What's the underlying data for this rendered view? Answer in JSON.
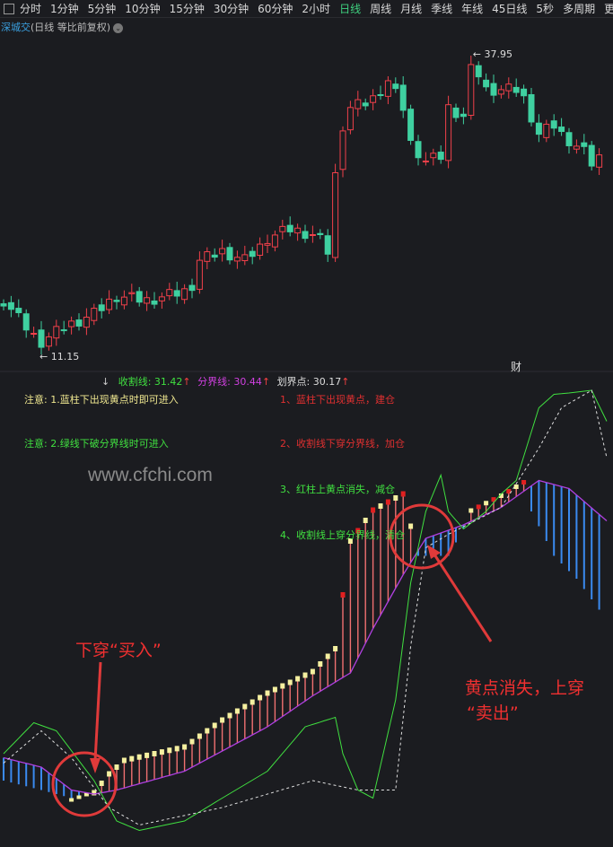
{
  "toolbar": {
    "periods": [
      "分时",
      "1分钟",
      "5分钟",
      "10分钟",
      "15分钟",
      "30分钟",
      "60分钟",
      "2小时",
      "日线",
      "周线",
      "月线",
      "季线",
      "年线",
      "45日线",
      "5秒",
      "多周期",
      "更多"
    ],
    "active": "日线"
  },
  "subtitle": {
    "code": "深城交",
    "mode": "(日线 等比前复权)"
  },
  "price_panel": {
    "high_label": "37.95",
    "low_label": "11.15",
    "marker": "财"
  },
  "indicator_header": {
    "arrow_down": "↓",
    "line1": "收割线: 31.42",
    "line2": "分界线: 30.44",
    "line3": "划界点: 30.17",
    "arrow_up": "↑"
  },
  "notes": {
    "left": [
      "注意: 1.蓝柱下出现黄点时即可进入",
      "注意: 2.绿线下破分界线时可进入"
    ],
    "right": [
      "1、蓝柱下出现黄点，建仓",
      "2、收割线下穿分界线，加仓",
      "3、红柱上黄点消失，减仓",
      "4、收割线上穿分界线，清仓"
    ]
  },
  "watermark": "www.cfchi.com",
  "annotations": {
    "buy": "下穿“买入”",
    "sell1": "黄点消失，上穿",
    "sell2": "“卖出”"
  },
  "colors": {
    "up": "#f0404a",
    "down": "#3fd0a0",
    "fenjie": "#b040e0",
    "green": "#40e040",
    "blue": "#3a8af0",
    "yellow": "#f5f0a0",
    "annot": "#f03030"
  },
  "chart_data": [
    {
      "type": "candlestick",
      "ylim": [
        11.15,
        37.95
      ],
      "close_keyframes": [
        [
          0,
          16.0
        ],
        [
          4,
          12.8
        ],
        [
          5,
          12.3
        ],
        [
          8,
          13.6
        ],
        [
          12,
          14.8
        ],
        [
          15,
          16.4
        ],
        [
          19,
          16.0
        ],
        [
          24,
          16.8
        ],
        [
          25,
          17.4
        ],
        [
          26,
          19.6
        ],
        [
          29,
          20.4
        ],
        [
          32,
          19.6
        ],
        [
          34,
          20.8
        ],
        [
          35,
          21.6
        ],
        [
          38,
          22.4
        ],
        [
          41,
          21.9
        ],
        [
          42,
          21.4
        ],
        [
          43,
          20.4
        ],
        [
          44,
          27.2
        ],
        [
          45,
          31.7
        ],
        [
          46,
          33.3
        ],
        [
          48,
          33.7
        ],
        [
          49,
          34.1
        ],
        [
          51,
          35.7
        ],
        [
          53,
          33.3
        ],
        [
          54,
          30.1
        ],
        [
          56,
          28.5
        ],
        [
          58,
          28.9
        ],
        [
          59,
          33.3
        ],
        [
          61,
          32.5
        ],
        [
          62,
          37.7
        ],
        [
          64,
          34.9
        ],
        [
          66,
          34.9
        ],
        [
          68,
          34.9
        ],
        [
          69,
          34.1
        ],
        [
          71,
          30.9
        ],
        [
          73,
          31.7
        ],
        [
          74,
          30.9
        ],
        [
          77,
          29.3
        ],
        [
          78,
          28.3
        ],
        [
          80,
          29.3
        ]
      ],
      "max": {
        "index": 62,
        "value": 37.95
      },
      "min": {
        "index": 5,
        "value": 11.15
      }
    },
    {
      "type": "indicator",
      "series": [
        {
          "name": "分界线",
          "keyframes": [
            [
              0,
              13.7
            ],
            [
              5,
              13.0
            ],
            [
              9,
              11.3
            ],
            [
              12,
              11.0
            ],
            [
              15,
              11.3
            ],
            [
              24,
              12.7
            ],
            [
              35,
              16.0
            ],
            [
              41,
              18.3
            ],
            [
              46,
              20.0
            ],
            [
              49,
              23.3
            ],
            [
              53,
              27.3
            ],
            [
              56,
              30.0
            ],
            [
              61,
              31.0
            ],
            [
              66,
              32.3
            ],
            [
              71,
              34.3
            ],
            [
              75,
              33.7
            ],
            [
              80,
              31.3
            ]
          ]
        },
        {
          "name": "bar_end",
          "keyframes": [
            [
              0,
              12.0
            ],
            [
              5,
              11.3
            ],
            [
              9,
              10.7
            ],
            [
              12,
              11.3
            ],
            [
              14,
              12.7
            ],
            [
              16,
              13.7
            ],
            [
              24,
              14.7
            ],
            [
              29,
              16.7
            ],
            [
              35,
              18.7
            ],
            [
              41,
              20.3
            ],
            [
              44,
              22.0
            ],
            [
              45,
              26.0
            ],
            [
              46,
              30.0
            ],
            [
              49,
              32.3
            ],
            [
              53,
              33.5
            ],
            [
              55,
              28.7
            ],
            [
              59,
              28.7
            ],
            [
              61,
              30.7
            ],
            [
              62,
              31.9
            ],
            [
              66,
              33.0
            ],
            [
              69,
              34.0
            ],
            [
              70,
              32.0
            ],
            [
              73,
              28.7
            ],
            [
              76,
              27.0
            ],
            [
              79,
              24.7
            ]
          ]
        },
        {
          "name": "收割线",
          "keyframes": [
            [
              0,
              14.0
            ],
            [
              4,
              16.3
            ],
            [
              7,
              15.7
            ],
            [
              12,
              12.0
            ],
            [
              15,
              9.0
            ],
            [
              18,
              8.3
            ],
            [
              24,
              9.0
            ],
            [
              29,
              10.7
            ],
            [
              35,
              12.7
            ],
            [
              40,
              16.0
            ],
            [
              44,
              16.7
            ],
            [
              45,
              14.0
            ],
            [
              47,
              11.3
            ],
            [
              49,
              10.7
            ],
            [
              52,
              18.0
            ],
            [
              54,
              26.7
            ],
            [
              56,
              32.0
            ],
            [
              58,
              34.7
            ],
            [
              59,
              32.0
            ],
            [
              61,
              30.7
            ],
            [
              64,
              32.0
            ],
            [
              66,
              33.3
            ],
            [
              68,
              34.3
            ],
            [
              71,
              39.7
            ],
            [
              73,
              40.7
            ],
            [
              75,
              40.8
            ],
            [
              78,
              41.0
            ],
            [
              80,
              38.7
            ]
          ]
        },
        {
          "name": "划界点",
          "keyframes": [
            [
              0,
              13.3
            ],
            [
              5,
              15.7
            ],
            [
              9,
              13.7
            ],
            [
              14,
              10.0
            ],
            [
              18,
              8.7
            ],
            [
              29,
              10.0
            ],
            [
              41,
              12.0
            ],
            [
              47,
              11.3
            ],
            [
              52,
              11.3
            ],
            [
              54,
              22.0
            ],
            [
              56,
              29.3
            ],
            [
              59,
              30.3
            ],
            [
              66,
              32.3
            ],
            [
              71,
              36.7
            ],
            [
              74,
              39.7
            ],
            [
              78,
              41.0
            ],
            [
              80,
              36.0
            ]
          ]
        }
      ],
      "last": {
        "收割线": 31.42,
        "分界线": 30.44,
        "划界点": 30.17
      }
    }
  ]
}
